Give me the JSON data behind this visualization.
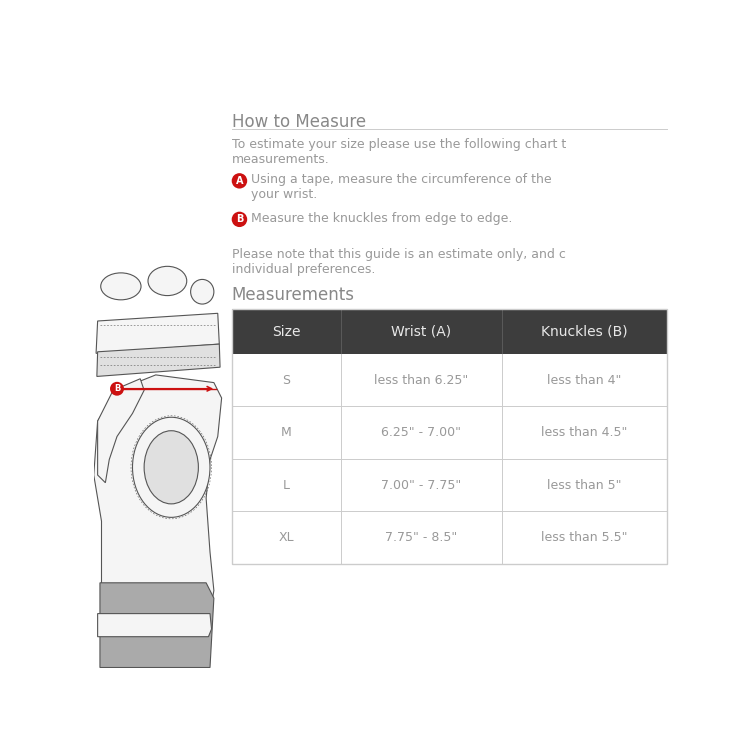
{
  "title": "How to Measure",
  "intro_text": "To estimate your size please use the following chart t\nmeasurements.",
  "step_a_label": "A",
  "step_a_text": "Using a tape, measure the circumference of the\nyour wrist.",
  "step_b_label": "B",
  "step_b_text": "Measure the knuckles from edge to edge.",
  "note_text": "Please note that this guide is an estimate only, and c\nindividual preferences.",
  "measurements_label": "Measurements",
  "table_header": [
    "Size",
    "Wrist (A)",
    "Knuckles (B)"
  ],
  "table_rows": [
    [
      "S",
      "less than 6.25\"",
      "less than 4\""
    ],
    [
      "M",
      "6.25\" - 7.00\"",
      "less than 4.5\""
    ],
    [
      "L",
      "7.00\" - 7.75\"",
      "less than 5\""
    ],
    [
      "XL",
      "7.75\" - 8.5\"",
      "less than 5.5\""
    ]
  ],
  "header_bg": "#3d3d3d",
  "header_text_color": "#e8e8e8",
  "row_bg": "#ffffff",
  "row_border_color": "#cccccc",
  "cell_text_color": "#999999",
  "body_text_color": "#999999",
  "title_text_color": "#888888",
  "badge_color": "#cc1111",
  "badge_text_color": "#ffffff",
  "bg_color": "#ffffff",
  "separator_color": "#cccccc",
  "arrow_color": "#cc1111",
  "glove_outline": "#555555",
  "glove_fill_light": "#f5f5f5",
  "glove_fill_mid": "#e0e0e0",
  "glove_fill_dark": "#aaaaaa"
}
